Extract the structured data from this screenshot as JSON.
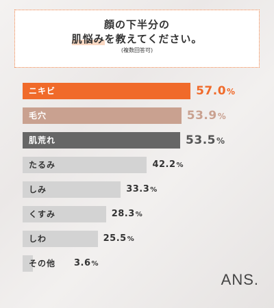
{
  "header": {
    "title_line1": "顔の下半分の",
    "title_line2_highlight": "肌悩み",
    "title_line2_rest": "を教えてください。",
    "note": "(複数回答可)"
  },
  "chart_data": {
    "type": "bar",
    "orientation": "horizontal",
    "categories": [
      "ニキビ",
      "毛穴",
      "肌荒れ",
      "たるみ",
      "しみ",
      "くすみ",
      "しわ",
      "その他"
    ],
    "values": [
      57.0,
      53.9,
      53.5,
      42.2,
      33.3,
      28.3,
      25.5,
      3.6
    ],
    "value_labels": [
      "57.0",
      "53.9",
      "53.5",
      "42.2",
      "33.3",
      "28.3",
      "25.5",
      "3.6"
    ],
    "unit": "%",
    "xlim": [
      0,
      100
    ],
    "colors": [
      "#f06a2a",
      "#c9a190",
      "#666666",
      "#d3d3d3",
      "#d3d3d3",
      "#d3d3d3",
      "#d3d3d3",
      "#d3d3d3"
    ],
    "label_colors": [
      "#ffffff",
      "#ffffff",
      "#ffffff",
      "#333333",
      "#333333",
      "#333333",
      "#333333",
      "#333333"
    ],
    "value_colors": [
      "#f06a2a",
      "#c9a190",
      "#555555",
      "#333333",
      "#333333",
      "#333333",
      "#333333",
      "#333333"
    ]
  },
  "brand": {
    "logo": "ANS."
  }
}
